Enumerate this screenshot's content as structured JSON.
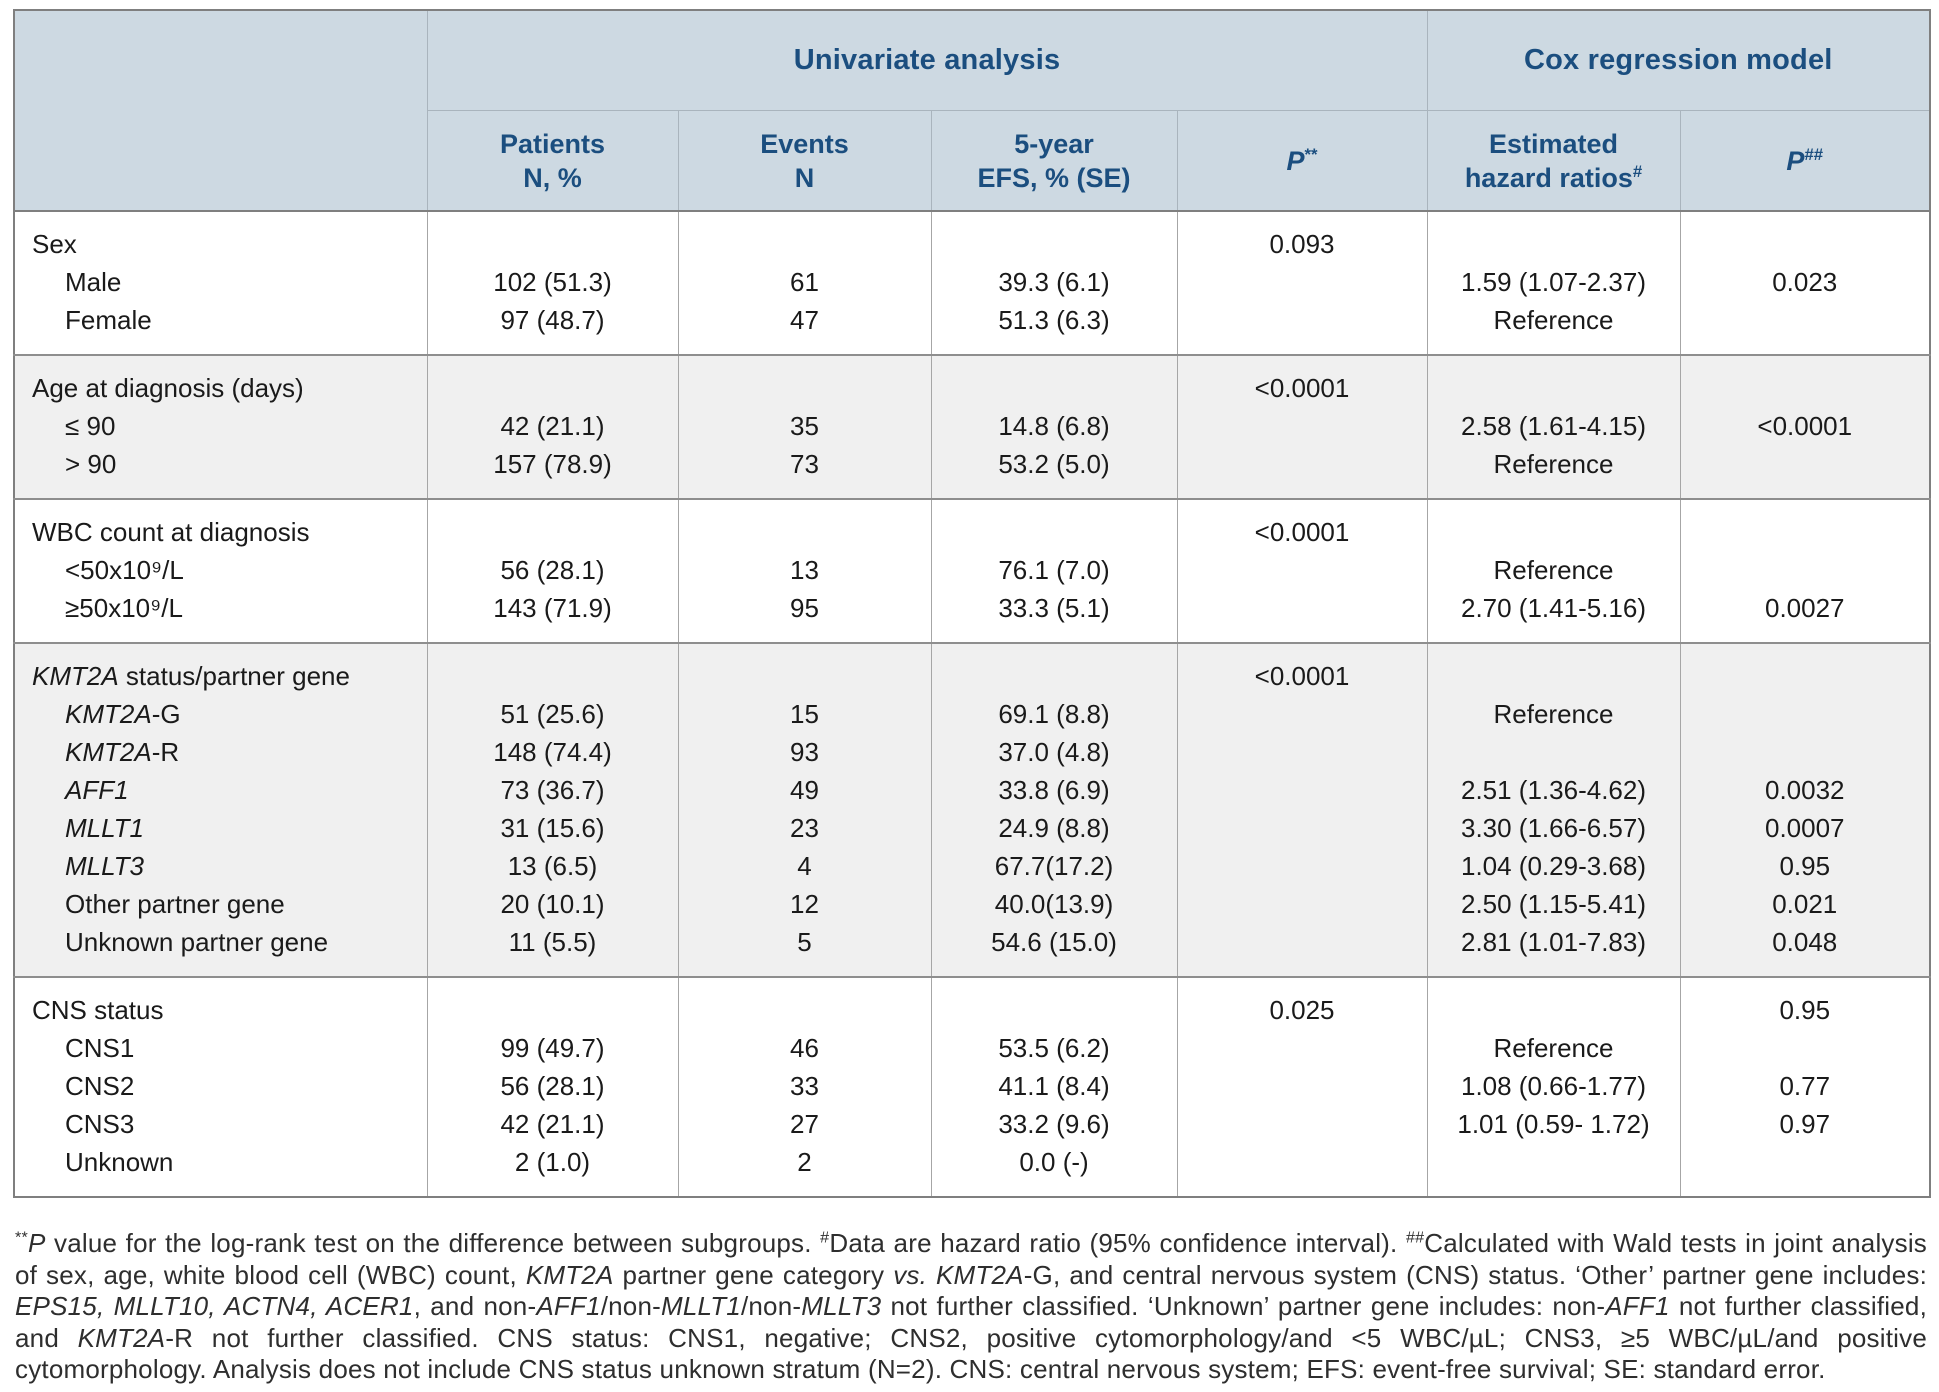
{
  "theme": {
    "header-bg": "#cdd9e2",
    "header-text": "#1b4e7f",
    "body-text": "#1a1a1a",
    "section-alt-bg": "#f0f0f0",
    "border-strong": "#7f7f7f",
    "border-light": "#a6a6a6",
    "header-border": "#a9b4bd"
  },
  "table": {
    "header": {
      "univariate_group": "Univariate analysis",
      "cox_group": "Cox regression model",
      "patients_l1": "Patients",
      "patients_l2": "N, %",
      "events_l1": "Events",
      "events_l2": "N",
      "efs_l1": "5-year",
      "efs_l2": "EFS, % (SE)",
      "p_univariate_base": "P",
      "p_univariate_sup": "**",
      "hr_l1": "Estimated",
      "hr_l2": "hazard ratios",
      "hr_sup": "#",
      "p_cox_base": "P",
      "p_cox_sup": "##"
    },
    "sections": [
      {
        "id": "sex",
        "shaded": false,
        "rows": [
          {
            "label": "Sex",
            "p": "0.093"
          },
          {
            "label": "Male",
            "indent": true,
            "patients": "102 (51.3)",
            "events": "61",
            "efs": "39.3 (6.1)",
            "hr": "1.59 (1.07-2.37)",
            "p2": "0.023"
          },
          {
            "label": "Female",
            "indent": true,
            "patients": "97 (48.7)",
            "events": "47",
            "efs": "51.3 (6.3)",
            "hr": "Reference"
          }
        ]
      },
      {
        "id": "age",
        "shaded": true,
        "rows": [
          {
            "label": "Age at diagnosis (days)",
            "p": "<0.0001"
          },
          {
            "label": "≤ 90",
            "indent": true,
            "patients": "42 (21.1)",
            "events": "35",
            "efs": "14.8 (6.8)",
            "hr": "2.58 (1.61-4.15)",
            "p2": "<0.0001"
          },
          {
            "label": "> 90",
            "indent": true,
            "patients": "157 (78.9)",
            "events": "73",
            "efs": "53.2 (5.0)",
            "hr": "Reference"
          }
        ]
      },
      {
        "id": "wbc",
        "shaded": false,
        "rows": [
          {
            "label": "WBC count at diagnosis",
            "p": "<0.0001"
          },
          {
            "label": "<50x10⁹/L",
            "indent": true,
            "patients": "56 (28.1)",
            "events": "13",
            "efs": "76.1 (7.0)",
            "hr": "Reference"
          },
          {
            "label": "≥50x10⁹/L",
            "indent": true,
            "patients": "143 (71.9)",
            "events": "95",
            "efs": "33.3 (5.1)",
            "hr": "2.70 (1.41-5.16)",
            "p2": "0.0027"
          }
        ]
      },
      {
        "id": "kmt2a",
        "shaded": true,
        "rows": [
          {
            "label_italic": "KMT2A",
            "label": " status/partner gene",
            "p": "<0.0001"
          },
          {
            "label_italic": "KMT2A",
            "label": "-G",
            "indent": true,
            "patients": "51 (25.6)",
            "events": "15",
            "efs": "69.1 (8.8)",
            "hr": "Reference"
          },
          {
            "label_italic": "KMT2A",
            "label": "-R",
            "indent": true,
            "patients": "148 (74.4)",
            "events": "93",
            "efs": "37.0 (4.8)"
          },
          {
            "label_italic": "AFF1",
            "label": "",
            "indent": true,
            "patients": "73 (36.7)",
            "events": "49",
            "efs": "33.8 (6.9)",
            "hr": "2.51 (1.36-4.62)",
            "p2": "0.0032"
          },
          {
            "label_italic": "MLLT1",
            "label": "",
            "indent": true,
            "patients": "31 (15.6)",
            "events": "23",
            "efs": "24.9 (8.8)",
            "hr": "3.30 (1.66-6.57)",
            "p2": "0.0007"
          },
          {
            "label_italic": "MLLT3",
            "label": "",
            "indent": true,
            "patients": "13 (6.5)",
            "events": "4",
            "efs": "67.7(17.2)",
            "hr": "1.04 (0.29-3.68)",
            "p2": "0.95"
          },
          {
            "label": "Other partner gene",
            "indent": true,
            "patients": "20 (10.1)",
            "events": "12",
            "efs": "40.0(13.9)",
            "hr": "2.50 (1.15-5.41)",
            "p2": "0.021"
          },
          {
            "label": "Unknown partner gene",
            "indent": true,
            "patients": "11 (5.5)",
            "events": "5",
            "efs": "54.6 (15.0)",
            "hr": "2.81 (1.01-7.83)",
            "p2": "0.048"
          }
        ]
      },
      {
        "id": "cns",
        "shaded": false,
        "rows": [
          {
            "label": "CNS status",
            "p": "0.025",
            "p2": "0.95"
          },
          {
            "label": "CNS1",
            "indent": true,
            "patients": "99 (49.7)",
            "events": "46",
            "efs": "53.5 (6.2)",
            "hr": "Reference"
          },
          {
            "label": "CNS2",
            "indent": true,
            "patients": "56 (28.1)",
            "events": "33",
            "efs": "41.1 (8.4)",
            "hr": "1.08 (0.66-1.77)",
            "p2": "0.77"
          },
          {
            "label": "CNS3",
            "indent": true,
            "patients": "42 (21.1)",
            "events": "27",
            "efs": "33.2 (9.6)",
            "hr": "1.01 (0.59- 1.72)",
            "p2": "0.97"
          },
          {
            "label": "Unknown",
            "indent": true,
            "patients": "2 (1.0)",
            "events": "2",
            "efs": "0.0 (-)"
          }
        ]
      }
    ]
  },
  "footnote": {
    "segments": [
      {
        "t": "**",
        "s": "sup"
      },
      {
        "t": "P",
        "s": "i"
      },
      {
        "t": " value for the log-rank test on the difference between subgroups. ",
        "s": ""
      },
      {
        "t": "#",
        "s": "sup"
      },
      {
        "t": "Data are hazard ratio (95% confidence interval). ",
        "s": ""
      },
      {
        "t": "##",
        "s": "sup"
      },
      {
        "t": "Calculated with Wald tests in joint analysis of sex, age, white blood cell (WBC) count, ",
        "s": ""
      },
      {
        "t": "KMT2A",
        "s": "i"
      },
      {
        "t": " partner gene category ",
        "s": ""
      },
      {
        "t": "vs.",
        "s": "i"
      },
      {
        "t": " ",
        "s": ""
      },
      {
        "t": "KMT2A",
        "s": "i"
      },
      {
        "t": "-G, and central nervous system (CNS) status. ‘Other’ partner gene includes: ",
        "s": ""
      },
      {
        "t": "EPS15, MLLT10, ACTN4, ACER1",
        "s": "i"
      },
      {
        "t": ", and non-",
        "s": ""
      },
      {
        "t": "AFF1",
        "s": "i"
      },
      {
        "t": "/non-",
        "s": ""
      },
      {
        "t": "MLLT1",
        "s": "i"
      },
      {
        "t": "/non-",
        "s": ""
      },
      {
        "t": "MLLT3",
        "s": "i"
      },
      {
        "t": " not further classified. ‘Unknown’ partner gene includes: non-",
        "s": ""
      },
      {
        "t": "AFF1",
        "s": "i"
      },
      {
        "t": " not further classified, and ",
        "s": ""
      },
      {
        "t": "KMT2A",
        "s": "i"
      },
      {
        "t": "-R not further classified. CNS status: CNS1, negative; CNS2, positive cytomorphology/and <5 WBC/µL; CNS3, ≥5 WBC/µL/and positive cytomorphology. Analysis does not include CNS status unknown stratum (N=2). CNS: central nervous system; EFS: event-free survival; SE: standard error.",
        "s": ""
      }
    ]
  }
}
